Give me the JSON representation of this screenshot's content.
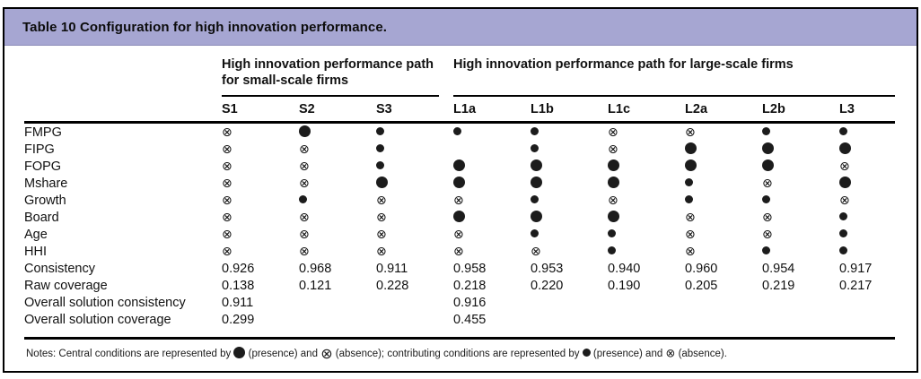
{
  "title": "Table 10 Configuration for high innovation performance.",
  "colors": {
    "title_bar": "#a6a6d2",
    "border": "#000000",
    "symbol": "#1c1c1c"
  },
  "header": {
    "group_small": "High innovation performance path for small-scale firms",
    "group_large": "High innovation performance path for large-scale firms",
    "columns": [
      "S1",
      "S2",
      "S3",
      "L1a",
      "L1b",
      "L1c",
      "L2a",
      "L2b",
      "L3"
    ]
  },
  "symbols": {
    "CP": "central condition presence (large filled circle)",
    "PP": "contributing condition presence (small filled circle)",
    "AB": "absence (circled cross)"
  },
  "body": {
    "rows": [
      {
        "label": "FMPG",
        "cells": [
          "AB",
          "CP",
          "PP",
          "PP",
          "PP",
          "AB",
          "AB",
          "PP",
          "PP"
        ]
      },
      {
        "label": "FIPG",
        "cells": [
          "AB",
          "AB",
          "PP",
          "",
          "PP",
          "AB",
          "CP",
          "CP",
          "CP"
        ]
      },
      {
        "label": "FOPG",
        "cells": [
          "AB",
          "AB",
          "PP",
          "CP",
          "CP",
          "CP",
          "CP",
          "CP",
          "AB"
        ]
      },
      {
        "label": "Mshare",
        "cells": [
          "AB",
          "AB",
          "CP",
          "CP",
          "CP",
          "CP",
          "PP",
          "AB",
          "CP"
        ]
      },
      {
        "label": "Growth",
        "cells": [
          "AB",
          "PP",
          "AB",
          "AB",
          "PP",
          "AB",
          "PP",
          "PP",
          "AB"
        ]
      },
      {
        "label": "Board",
        "cells": [
          "AB",
          "AB",
          "AB",
          "CP",
          "CP",
          "CP",
          "AB",
          "AB",
          "PP"
        ]
      },
      {
        "label": "Age",
        "cells": [
          "AB",
          "AB",
          "AB",
          "AB",
          "PP",
          "PP",
          "AB",
          "AB",
          "PP"
        ]
      },
      {
        "label": "HHI",
        "cells": [
          "AB",
          "AB",
          "AB",
          "AB",
          "AB",
          "PP",
          "AB",
          "PP",
          "PP"
        ]
      },
      {
        "label": "Consistency",
        "cells": [
          "0.926",
          "0.968",
          "0.911",
          "0.958",
          "0.953",
          "0.940",
          "0.960",
          "0.954",
          "0.917"
        ]
      },
      {
        "label": "Raw coverage",
        "cells": [
          "0.138",
          "0.121",
          "0.228",
          "0.218",
          "0.220",
          "0.190",
          "0.205",
          "0.219",
          "0.217"
        ]
      },
      {
        "label": "Overall solution consistency",
        "cells": [
          "0.911",
          "",
          "",
          "0.916",
          "",
          "",
          "",
          "",
          ""
        ]
      },
      {
        "label": "Overall solution coverage",
        "cells": [
          "0.299",
          "",
          "",
          "0.455",
          "",
          "",
          "",
          "",
          ""
        ]
      }
    ]
  },
  "notes": {
    "part1": "Notes: Central conditions are represented by",
    "part2": "(presence) and",
    "part3": "(absence); contributing conditions are represented by",
    "part4": "(presence) and",
    "part5": "(absence)."
  }
}
